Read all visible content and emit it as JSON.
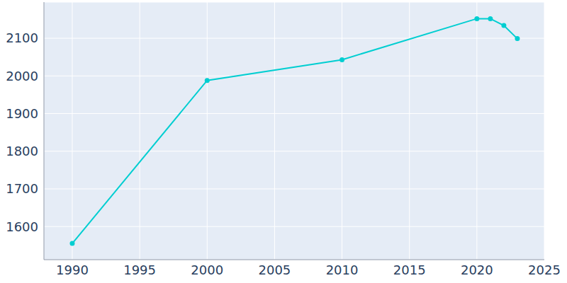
{
  "chart_data": {
    "type": "line",
    "x": [
      1990,
      2000,
      2010,
      2020,
      2021,
      2022,
      2023
    ],
    "values": [
      1555,
      1988,
      2043,
      2152,
      2152,
      2134,
      2099
    ],
    "color": "#00ced1",
    "marker": "circle",
    "xlim": [
      1987.9,
      2025
    ],
    "xticks": [
      1990,
      1995,
      2000,
      2005,
      2010,
      2015,
      2020,
      2025
    ],
    "ylim": [
      1512,
      2196
    ],
    "yticks": [
      1600,
      1700,
      1800,
      1900,
      2000,
      2100
    ],
    "grid": true
  }
}
